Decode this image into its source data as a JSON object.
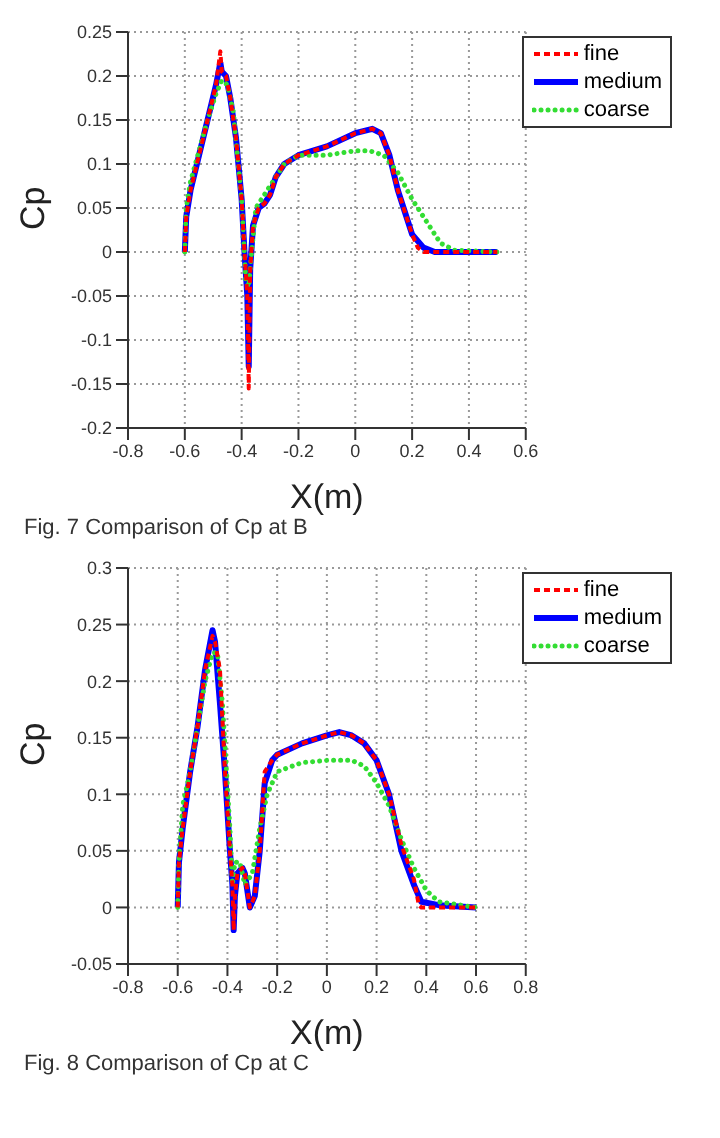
{
  "chart_data": [
    {
      "type": "line",
      "xlabel": "X(m)",
      "ylabel": "Cp",
      "xlim": [
        -0.8,
        0.6
      ],
      "xticks": [
        -0.8,
        -0.6,
        -0.4,
        -0.2,
        0,
        0.2,
        0.4,
        0.6
      ],
      "ylim": [
        -0.2,
        0.25
      ],
      "yticks": [
        -0.2,
        -0.15,
        -0.1,
        -0.05,
        0,
        0.05,
        0.1,
        0.15,
        0.2,
        0.25
      ],
      "grid": true,
      "legend": "top right",
      "marker": "none",
      "annotations": [
        "Fig. 7 Comparison of Cp at B"
      ],
      "series": [
        {
          "name": "fine",
          "color": "#ff0000",
          "line_style": "dashed",
          "x": [
            -0.6,
            -0.595,
            -0.58,
            -0.55,
            -0.52,
            -0.49,
            -0.475,
            -0.47,
            -0.455,
            -0.44,
            -0.42,
            -0.4,
            -0.39,
            -0.38,
            -0.375,
            -0.37,
            -0.36,
            -0.34,
            -0.32,
            -0.3,
            -0.28,
            -0.25,
            -0.2,
            -0.1,
            0,
            0.06,
            0.09,
            0.12,
            0.15,
            0.17,
            0.2,
            0.22,
            0.24,
            0.5
          ],
          "values": [
            0,
            0.04,
            0.07,
            0.11,
            0.15,
            0.19,
            0.228,
            0.205,
            0.2,
            0.175,
            0.13,
            0.06,
            0,
            -0.05,
            -0.155,
            -0.02,
            0.03,
            0.05,
            0.055,
            0.065,
            0.085,
            0.1,
            0.11,
            0.12,
            0.135,
            0.14,
            0.135,
            0.11,
            0.07,
            0.05,
            0.02,
            0.005,
            0,
            0
          ]
        },
        {
          "name": "medium",
          "color": "#0000ff",
          "line_style": "solid",
          "x": [
            -0.6,
            -0.595,
            -0.58,
            -0.55,
            -0.52,
            -0.49,
            -0.475,
            -0.47,
            -0.455,
            -0.44,
            -0.42,
            -0.4,
            -0.39,
            -0.38,
            -0.375,
            -0.37,
            -0.36,
            -0.34,
            -0.32,
            -0.3,
            -0.28,
            -0.25,
            -0.2,
            -0.1,
            0,
            0.06,
            0.09,
            0.12,
            0.15,
            0.17,
            0.2,
            0.24,
            0.28,
            0.5
          ],
          "values": [
            0,
            0.04,
            0.07,
            0.11,
            0.15,
            0.19,
            0.215,
            0.205,
            0.2,
            0.175,
            0.13,
            0.06,
            0,
            -0.05,
            -0.13,
            -0.02,
            0.03,
            0.05,
            0.055,
            0.065,
            0.085,
            0.1,
            0.11,
            0.12,
            0.135,
            0.14,
            0.135,
            0.11,
            0.07,
            0.05,
            0.02,
            0.005,
            0,
            0
          ]
        },
        {
          "name": "coarse",
          "color": "#33dd33",
          "line_style": "dotted",
          "x": [
            -0.6,
            -0.595,
            -0.58,
            -0.55,
            -0.52,
            -0.49,
            -0.47,
            -0.45,
            -0.43,
            -0.4,
            -0.385,
            -0.375,
            -0.365,
            -0.35,
            -0.3,
            -0.25,
            -0.2,
            -0.1,
            0,
            0.05,
            0.1,
            0.15,
            0.2,
            0.25,
            0.3,
            0.35,
            0.5
          ],
          "values": [
            0,
            0.05,
            0.08,
            0.115,
            0.15,
            0.18,
            0.195,
            0.19,
            0.16,
            0.06,
            -0.035,
            -0.04,
            0,
            0.05,
            0.075,
            0.1,
            0.11,
            0.11,
            0.115,
            0.115,
            0.11,
            0.09,
            0.06,
            0.035,
            0.01,
            0.002,
            0
          ]
        }
      ]
    },
    {
      "type": "line",
      "xlabel": "X(m)",
      "ylabel": "Cp",
      "xlim": [
        -0.8,
        0.8
      ],
      "xticks": [
        -0.8,
        -0.6,
        -0.4,
        -0.2,
        0,
        0.2,
        0.4,
        0.6,
        0.8
      ],
      "ylim": [
        -0.05,
        0.3
      ],
      "yticks": [
        -0.05,
        0,
        0.05,
        0.1,
        0.15,
        0.2,
        0.25,
        0.3
      ],
      "grid": true,
      "legend": "top right",
      "marker": "none",
      "annotations": [
        "Fig. 8 Comparison of Cp at C"
      ],
      "series": [
        {
          "name": "fine",
          "color": "#ff0000",
          "line_style": "dashed",
          "x": [
            -0.6,
            -0.595,
            -0.58,
            -0.55,
            -0.52,
            -0.49,
            -0.46,
            -0.45,
            -0.43,
            -0.41,
            -0.39,
            -0.38,
            -0.375,
            -0.37,
            -0.36,
            -0.34,
            -0.33,
            -0.31,
            -0.29,
            -0.27,
            -0.25,
            -0.22,
            -0.2,
            -0.1,
            0,
            0.05,
            0.1,
            0.15,
            0.2,
            0.25,
            0.3,
            0.35,
            0.37,
            0.38,
            0.6
          ],
          "values": [
            0,
            0.04,
            0.07,
            0.12,
            0.16,
            0.21,
            0.24,
            0.235,
            0.21,
            0.12,
            0.05,
            0.02,
            -0.02,
            0.01,
            0.03,
            0.035,
            0.03,
            0,
            0.01,
            0.05,
            0.12,
            0.13,
            0.135,
            0.145,
            0.152,
            0.155,
            0.152,
            0.145,
            0.13,
            0.1,
            0.055,
            0.025,
            0.002,
            0,
            0
          ]
        },
        {
          "name": "medium",
          "color": "#0000ff",
          "line_style": "solid",
          "x": [
            -0.6,
            -0.595,
            -0.58,
            -0.55,
            -0.52,
            -0.49,
            -0.46,
            -0.45,
            -0.43,
            -0.41,
            -0.39,
            -0.38,
            -0.375,
            -0.37,
            -0.36,
            -0.34,
            -0.33,
            -0.31,
            -0.29,
            -0.27,
            -0.25,
            -0.22,
            -0.2,
            -0.1,
            0,
            0.05,
            0.1,
            0.15,
            0.2,
            0.25,
            0.3,
            0.35,
            0.38,
            0.45,
            0.6
          ],
          "values": [
            0,
            0.04,
            0.07,
            0.12,
            0.16,
            0.21,
            0.245,
            0.235,
            0.18,
            0.12,
            0.05,
            0.02,
            -0.02,
            0.01,
            0.03,
            0.035,
            0.03,
            0,
            0.01,
            0.05,
            0.11,
            0.13,
            0.135,
            0.145,
            0.152,
            0.155,
            0.152,
            0.145,
            0.13,
            0.1,
            0.05,
            0.02,
            0.005,
            0.002,
            0
          ]
        },
        {
          "name": "coarse",
          "color": "#33dd33",
          "line_style": "dotted",
          "x": [
            -0.6,
            -0.595,
            -0.58,
            -0.55,
            -0.52,
            -0.49,
            -0.46,
            -0.44,
            -0.42,
            -0.39,
            -0.38,
            -0.37,
            -0.35,
            -0.33,
            -0.3,
            -0.27,
            -0.24,
            -0.2,
            -0.1,
            0,
            0.1,
            0.15,
            0.2,
            0.25,
            0.3,
            0.35,
            0.4,
            0.45,
            0.6
          ],
          "values": [
            0,
            0.04,
            0.09,
            0.12,
            0.16,
            0.2,
            0.225,
            0.225,
            0.18,
            0.07,
            0.02,
            0.04,
            0.04,
            0.02,
            0.03,
            0.07,
            0.1,
            0.12,
            0.128,
            0.13,
            0.13,
            0.125,
            0.11,
            0.09,
            0.06,
            0.035,
            0.015,
            0.005,
            0
          ]
        }
      ]
    }
  ]
}
